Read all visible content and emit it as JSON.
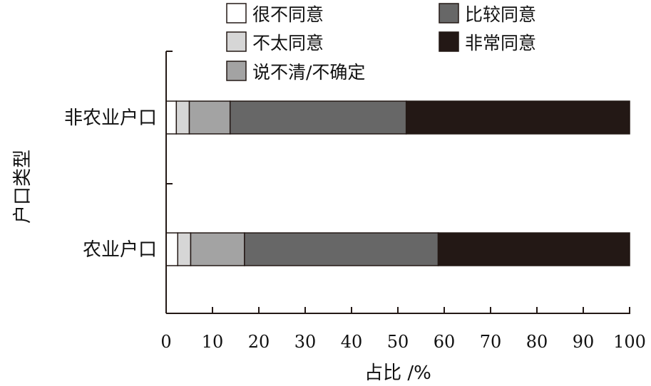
{
  "chart_data": {
    "type": "bar",
    "orientation": "horizontal",
    "stacked": true,
    "categories": [
      "非农业户口",
      "农业户口"
    ],
    "series": [
      {
        "name": "很不同意",
        "values": [
          2.2,
          2.5
        ],
        "color": "#ffffff"
      },
      {
        "name": "不太同意",
        "values": [
          2.8,
          2.8
        ],
        "color": "#d6d6d6"
      },
      {
        "name": "说不清/不确定",
        "values": [
          8.8,
          11.6
        ],
        "color": "#a3a3a3"
      },
      {
        "name": "比较同意",
        "values": [
          38.0,
          41.8
        ],
        "color": "#676767"
      },
      {
        "name": "非常同意",
        "values": [
          48.2,
          41.3
        ],
        "color": "#231815"
      }
    ],
    "x_ticks": [
      "0",
      "10",
      "20",
      "30",
      "40",
      "50",
      "60",
      "70",
      "80",
      "90",
      "100"
    ],
    "xlim": [
      0,
      100
    ],
    "xlabel": "占比 /%",
    "ylabel": "户口类型",
    "grid": false,
    "legend_position": "top"
  }
}
